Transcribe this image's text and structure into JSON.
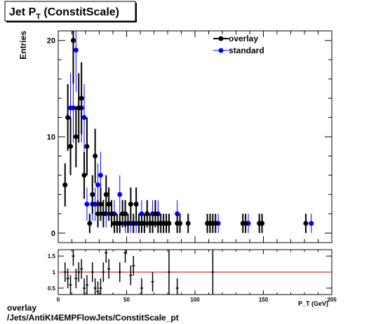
{
  "chart_data": {
    "type": "scatter",
    "title": "Jet P",
    "title_sub": "T",
    "title_rest": " (ConstitScale)",
    "ylabel": "Entries",
    "xlabel": "P_T (GeV)",
    "xlim": [
      0,
      200
    ],
    "ylim": [
      -1,
      21
    ],
    "legend_position": "top-right",
    "main_yticks": [
      0,
      10,
      20
    ],
    "xticks": [
      0,
      50,
      100,
      150,
      200
    ],
    "series": [
      {
        "name": "overlay",
        "color": "#000000",
        "x": [
          5,
          7,
          9,
          11,
          13,
          15,
          17,
          19,
          21,
          23,
          25,
          27,
          29,
          31,
          33,
          35,
          37,
          39,
          41,
          43,
          45,
          47,
          49,
          51,
          53,
          55,
          57,
          59,
          61,
          63,
          65,
          67,
          69,
          71,
          73,
          75,
          77,
          79,
          81,
          87,
          89,
          95,
          109,
          111,
          113,
          115,
          135,
          137,
          147,
          149,
          181
        ],
        "y": [
          5,
          12,
          9,
          20,
          10,
          13,
          14,
          6,
          9,
          1,
          4,
          8,
          2,
          3,
          2,
          4,
          3,
          2,
          1,
          1,
          1,
          2,
          2,
          1,
          3,
          1,
          3,
          1,
          1,
          1,
          2,
          1,
          1,
          2,
          1,
          1,
          1,
          1,
          1,
          1,
          1,
          1,
          1,
          1,
          1,
          1,
          1,
          1,
          1,
          1,
          1
        ]
      },
      {
        "name": "standard",
        "color": "#0000ff",
        "x": [
          9,
          11,
          13,
          15,
          17,
          19,
          21,
          25,
          27,
          29,
          31,
          33,
          35,
          37,
          41,
          45,
          49,
          53,
          55,
          57,
          61,
          65,
          69,
          73,
          87,
          117,
          139,
          149,
          185
        ],
        "y": [
          13,
          13,
          19,
          13,
          13,
          12,
          3,
          3,
          3,
          5,
          6,
          2,
          2,
          3,
          2,
          4,
          1,
          1,
          1,
          1,
          2,
          2,
          2,
          2,
          2,
          1,
          1,
          1,
          1
        ]
      }
    ],
    "ratio": {
      "yticks": [
        0.5,
        1,
        1.5
      ],
      "ytick_labels": [
        "0.5",
        "1",
        "1.5"
      ],
      "ylim": [
        0.3,
        1.7
      ],
      "reference_line": 1,
      "reference_color": "#cc0000",
      "points_x": [
        5,
        7,
        9,
        11,
        13,
        15,
        17,
        19,
        21,
        25,
        27,
        29,
        31,
        33,
        35,
        37,
        45,
        49,
        53,
        55,
        61,
        69,
        81,
        87,
        113
      ],
      "points_y": [
        1.0,
        0.8,
        0.6,
        1.5,
        0.8,
        1.0,
        1.1,
        0.5,
        0.6,
        1.0,
        0.5,
        0.4,
        0.5,
        1.0,
        1.6,
        1.1,
        1.0,
        1.6,
        0.9,
        1.2,
        0.5,
        0.7,
        1.0,
        0.5,
        1.0
      ]
    }
  },
  "footer": {
    "line1": "overlay",
    "line2": "/Jets/AntiKt4EMPFlowJets/ConstitScale_pt"
  }
}
